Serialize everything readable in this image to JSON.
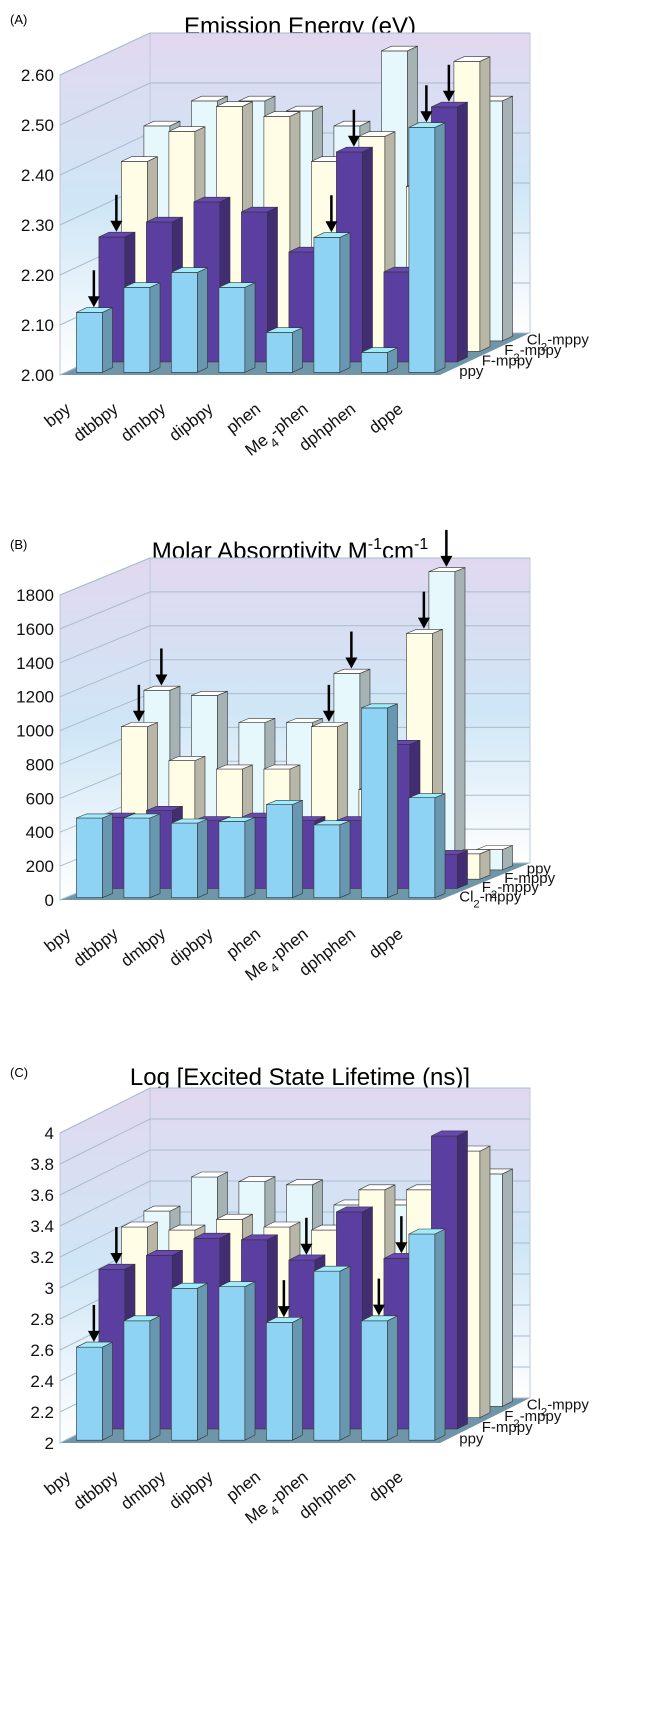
{
  "chart_data": [
    {
      "type": "bar",
      "panel_label": "(A)",
      "title": "Emission Energy (eV)",
      "title_superscripts": [],
      "categories": [
        "bpy",
        "dtbbpy",
        "dmbpy",
        "dipbpy",
        "phen",
        "Me4-phen",
        "dphphen",
        "dppe"
      ],
      "series": [
        {
          "name": "ppy",
          "values": [
            2.12,
            2.17,
            2.2,
            2.17,
            2.08,
            2.27,
            2.04,
            2.49
          ]
        },
        {
          "name": "F-mppy",
          "values": [
            2.25,
            2.28,
            2.32,
            2.3,
            2.22,
            2.42,
            2.18,
            2.51
          ]
        },
        {
          "name": "F2-mppy",
          "values": [
            2.38,
            2.44,
            2.49,
            2.47,
            2.38,
            2.43,
            2.33,
            2.58
          ]
        },
        {
          "name": "Cl2-mppy",
          "values": [
            2.43,
            2.48,
            2.48,
            2.46,
            2.43,
            2.58,
            2.34,
            2.48
          ]
        }
      ],
      "yticks": [
        "2.00",
        "2.10",
        "2.20",
        "2.30",
        "2.40",
        "2.50",
        "2.60"
      ],
      "ylim": [
        2.0,
        2.6
      ],
      "xlabel": "",
      "ylabel": "",
      "grid": true,
      "arrows": [
        {
          "category": "bpy",
          "series": "ppy"
        },
        {
          "category": "bpy",
          "series": "F-mppy"
        },
        {
          "category": "Me4-phen",
          "series": "ppy"
        },
        {
          "category": "Me4-phen",
          "series": "F-mppy"
        },
        {
          "category": "dppe",
          "series": "ppy"
        },
        {
          "category": "dppe",
          "series": "F-mppy"
        }
      ],
      "colors": {
        "ppy": "#8fd3f4",
        "F-mppy": "#5b3fa0",
        "F2-mppy": "#fffde6",
        "Cl2-mppy": "#e6f8fb"
      }
    },
    {
      "type": "bar",
      "panel_label": "(B)",
      "title": "Molar Absorptivity M",
      "title_superscripts": [
        "-1",
        "cm",
        "-1"
      ],
      "categories": [
        "bpy",
        "dtbbpy",
        "dmbpy",
        "dipbpy",
        "phen",
        "Me4-phen",
        "dphphen",
        "dppe"
      ],
      "series": [
        {
          "name": "Cl2-mppy",
          "values": [
            470,
            470,
            440,
            450,
            550,
            430,
            1120,
            590
          ]
        },
        {
          "name": "F2-mppy",
          "values": [
            420,
            460,
            400,
            420,
            400,
            400,
            850,
            200
          ]
        },
        {
          "name": "F-mppy",
          "values": [
            900,
            700,
            650,
            650,
            900,
            530,
            1450,
            150
          ]
        },
        {
          "name": "ppy",
          "values": [
            1060,
            1030,
            870,
            870,
            1160,
            740,
            1760,
            120
          ]
        }
      ],
      "yticks": [
        "0",
        "200",
        "400",
        "600",
        "800",
        "1000",
        "1200",
        "1400",
        "1600",
        "1800"
      ],
      "ylim": [
        0,
        1800
      ],
      "xlabel": "",
      "ylabel": "",
      "grid": true,
      "arrows": [
        {
          "category": "bpy",
          "series": "F-mppy"
        },
        {
          "category": "bpy",
          "series": "ppy"
        },
        {
          "category": "phen",
          "series": "F-mppy"
        },
        {
          "category": "phen",
          "series": "ppy"
        },
        {
          "category": "dphphen",
          "series": "F-mppy"
        },
        {
          "category": "dphphen",
          "series": "ppy"
        }
      ],
      "colors": {
        "Cl2-mppy": "#8fd3f4",
        "F2-mppy": "#5b3fa0",
        "F-mppy": "#fffde6",
        "ppy": "#e6f8fb"
      }
    },
    {
      "type": "bar",
      "panel_label": "(C)",
      "title": "Log [Excited State Lifetime (ns)]",
      "title_superscripts": [],
      "categories": [
        "bpy",
        "dtbbpy",
        "dmbpy",
        "dipbpy",
        "phen",
        "Me4-phen",
        "dphphen",
        "dppe"
      ],
      "series": [
        {
          "name": "ppy",
          "values": [
            2.6,
            2.77,
            2.98,
            2.99,
            2.76,
            3.09,
            2.77,
            3.33
          ]
        },
        {
          "name": "F-mppy",
          "values": [
            3.03,
            3.12,
            3.23,
            3.22,
            3.09,
            3.4,
            3.1,
            3.89
          ]
        },
        {
          "name": "F2-mppy",
          "values": [
            3.23,
            3.21,
            3.28,
            3.23,
            3.21,
            3.47,
            3.47,
            3.72
          ]
        },
        {
          "name": "Cl2-mppy",
          "values": [
            3.26,
            3.48,
            3.45,
            3.43,
            3.3,
            3.3,
            3.3,
            3.5
          ]
        }
      ],
      "yticks": [
        "2",
        "2.2",
        "2.4",
        "2.6",
        "2.8",
        "3",
        "3.2",
        "3.4",
        "3.6",
        "3.8",
        "4"
      ],
      "ylim": [
        2,
        4
      ],
      "xlabel": "",
      "ylabel": "",
      "grid": true,
      "arrows": [
        {
          "category": "bpy",
          "series": "ppy"
        },
        {
          "category": "bpy",
          "series": "F-mppy"
        },
        {
          "category": "phen",
          "series": "ppy"
        },
        {
          "category": "phen",
          "series": "F-mppy"
        },
        {
          "category": "dphphen",
          "series": "ppy"
        },
        {
          "category": "dphphen",
          "series": "F-mppy"
        }
      ],
      "colors": {
        "ppy": "#8fd3f4",
        "F-mppy": "#5b3fa0",
        "F2-mppy": "#fffde6",
        "Cl2-mppy": "#e6f8fb"
      }
    }
  ]
}
